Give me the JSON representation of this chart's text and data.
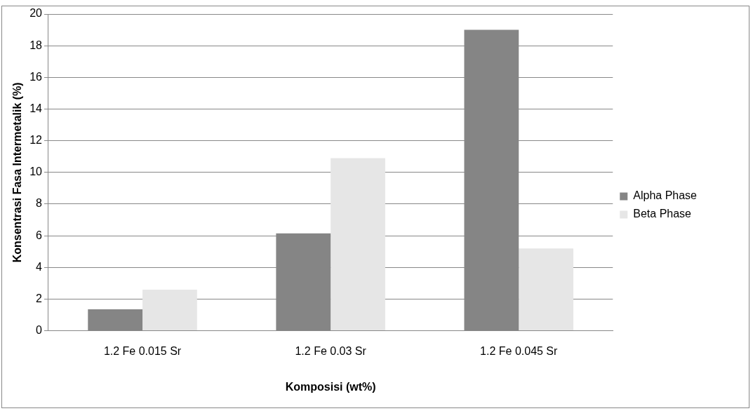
{
  "chart_data": {
    "type": "bar",
    "xlabel": "Komposisi (wt%)",
    "ylabel": "Konsentrasi Fasa Intermetalik (%)",
    "categories": [
      "1.2 Fe 0.015 Sr",
      "1.2 Fe 0.03 Sr",
      "1.2 Fe 0.045 Sr"
    ],
    "series": [
      {
        "name": "Alpha Phase",
        "color": "#858585",
        "values": [
          1.35,
          6.15,
          19.0
        ]
      },
      {
        "name": "Beta Phase",
        "color": "#e6e6e6",
        "values": [
          2.6,
          10.9,
          5.2
        ]
      }
    ],
    "ylim": [
      0,
      20
    ],
    "yticks": [
      0,
      2,
      4,
      6,
      8,
      10,
      12,
      14,
      16,
      18,
      20
    ],
    "grid": "y",
    "legend": "right"
  }
}
